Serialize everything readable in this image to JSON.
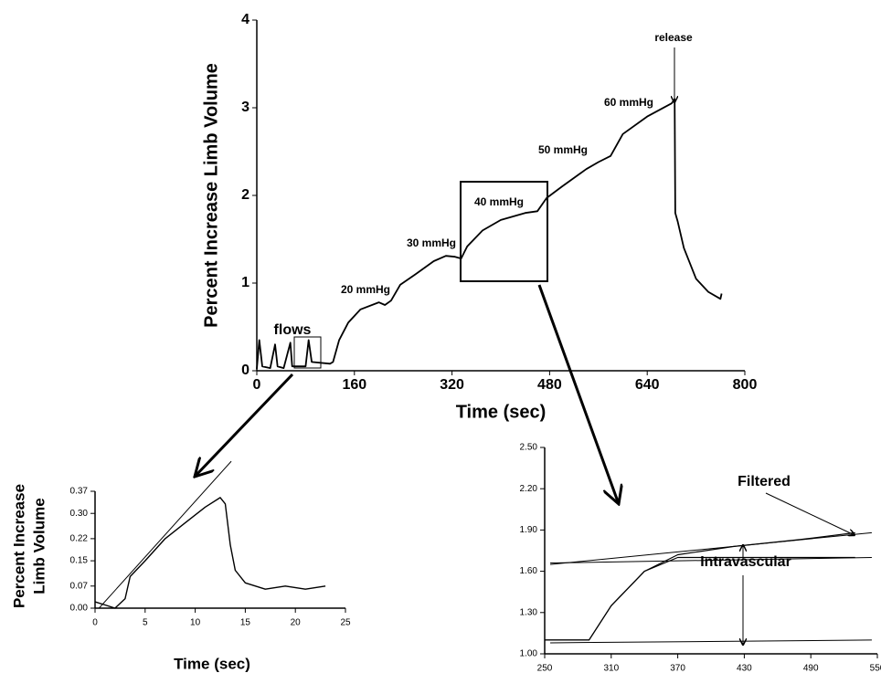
{
  "chart_data": [
    {
      "type": "line",
      "xlabel": "Time (sec)",
      "ylabel": "Percent Increase Limb Volume",
      "x": [
        0,
        4,
        9,
        22,
        30,
        34,
        44,
        55,
        58,
        80,
        85,
        90,
        120,
        125,
        135,
        150,
        170,
        200,
        210,
        220,
        235,
        260,
        290,
        310,
        325,
        335,
        345,
        370,
        400,
        440,
        460,
        475,
        500,
        540,
        560,
        580,
        600,
        640,
        680,
        685,
        686,
        690,
        700,
        720,
        740,
        760,
        762
      ],
      "series": [
        {
          "color": "#000000",
          "values": [
            0.02,
            0.35,
            0.05,
            0.03,
            0.3,
            0.05,
            0.03,
            0.32,
            0.05,
            0.05,
            0.35,
            0.1,
            0.08,
            0.1,
            0.35,
            0.55,
            0.7,
            0.78,
            0.75,
            0.8,
            0.98,
            1.1,
            1.25,
            1.31,
            1.3,
            1.28,
            1.42,
            1.6,
            1.72,
            1.8,
            1.82,
            1.97,
            2.1,
            2.3,
            2.38,
            2.45,
            2.7,
            2.9,
            3.05,
            3.1,
            1.8,
            1.7,
            1.4,
            1.05,
            0.9,
            0.82,
            0.88
          ]
        }
      ],
      "xlim": [
        0,
        800
      ],
      "xticks": [
        0,
        160,
        320,
        480,
        640,
        800
      ],
      "ylim": [
        0,
        4
      ],
      "yticks": [
        0,
        1,
        2,
        3,
        4
      ],
      "annotations": [
        "flows",
        "20 mmHg",
        "30 mmHg",
        "40 mmHg",
        "50 mmHg",
        "60 mmHg",
        "release"
      ]
    },
    {
      "type": "line",
      "xlabel": "Time (sec)",
      "ylabel": [
        "Percent Increase",
        "Limb Volume"
      ],
      "x": [
        0,
        1,
        2,
        3,
        3.5,
        5,
        7,
        9,
        11,
        12.5,
        13,
        13.5,
        14,
        15,
        17,
        19,
        21,
        23
      ],
      "series": [
        {
          "color": "#000000",
          "values": [
            0.02,
            0.01,
            0.0,
            0.03,
            0.1,
            0.15,
            0.22,
            0.27,
            0.32,
            0.35,
            0.33,
            0.2,
            0.12,
            0.08,
            0.06,
            0.07,
            0.06,
            0.07
          ]
        }
      ],
      "fit_lines": [
        {
          "x": [
            0.4,
            13.6
          ],
          "y": [
            0,
            0.465
          ]
        }
      ],
      "xlim": [
        0,
        25
      ],
      "xticks": [
        0,
        5,
        10,
        15,
        20,
        25
      ],
      "ylim": [
        0,
        0.37
      ],
      "yticks": [
        {
          "value": 0,
          "label": "0.00"
        },
        0.07,
        0.15,
        0.22,
        {
          "value": 0.3,
          "label": "0.30"
        },
        0.37
      ]
    },
    {
      "type": "line",
      "x": [
        250,
        290,
        310,
        340,
        370,
        420,
        480,
        530
      ],
      "series": [
        {
          "color": "#000000",
          "values": [
            1.1,
            1.1,
            1.35,
            1.6,
            1.72,
            1.78,
            1.83,
            1.88
          ]
        },
        {
          "color": "#000000",
          "values": [
            1.1,
            1.1,
            1.35,
            1.6,
            1.7,
            1.7,
            1.7,
            1.7
          ]
        }
      ],
      "fit_lines": [
        {
          "x": [
            255,
            545
          ],
          "y": [
            1.65,
            1.88
          ]
        },
        {
          "x": [
            255,
            545
          ],
          "y": [
            1.66,
            1.7
          ]
        },
        {
          "x": [
            255,
            545
          ],
          "y": [
            1.08,
            1.1
          ]
        }
      ],
      "xlim": [
        250,
        550
      ],
      "xticks": [
        250,
        310,
        370,
        430,
        490,
        550
      ],
      "ylim": [
        1,
        2.5
      ],
      "yticks": [
        {
          "value": 1,
          "label": "1.00"
        },
        {
          "value": 1.3,
          "label": "1.30"
        },
        {
          "value": 1.6,
          "label": "1.60"
        },
        {
          "value": 1.9,
          "label": "1.90"
        },
        {
          "value": 2.2,
          "label": "2.20"
        },
        {
          "value": 2.5,
          "label": "2.50"
        }
      ],
      "annotations": [
        "Filtered",
        "Intravascular"
      ]
    }
  ]
}
